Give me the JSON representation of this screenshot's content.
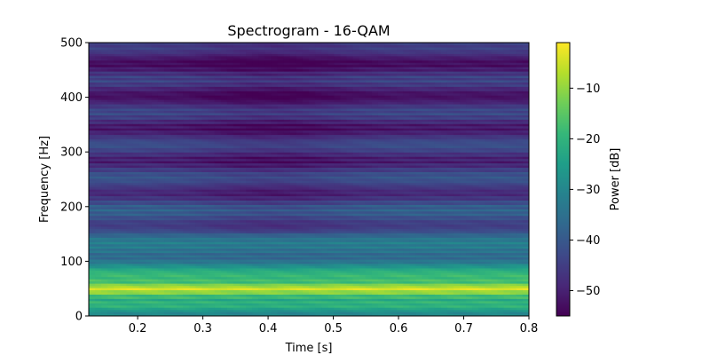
{
  "chart_data": {
    "type": "heatmap",
    "title": "Spectrogram - 16-QAM",
    "xlabel": "Time [s]",
    "ylabel": "Frequency [Hz]",
    "xlim": [
      0.125,
      0.8
    ],
    "ylim": [
      0,
      500
    ],
    "x_ticks": [
      "0.2",
      "0.3",
      "0.4",
      "0.5",
      "0.6",
      "0.7",
      "0.8"
    ],
    "y_ticks": [
      "0",
      "100",
      "200",
      "300",
      "400",
      "500"
    ],
    "colorbar": {
      "label": "Power [dB]",
      "range": [
        -55,
        -1
      ],
      "ticks": [
        "−10",
        "−20",
        "−30",
        "−40",
        "−50"
      ],
      "colormap": "viridis"
    },
    "colormap_stops": [
      "#440154",
      "#482878",
      "#3e4989",
      "#31688e",
      "#26828e",
      "#1f9e89",
      "#35b779",
      "#6ece58",
      "#b5de2b",
      "#fde725"
    ],
    "frequency_profile_db": [
      {
        "f": 0,
        "db": -28
      },
      {
        "f": 8,
        "db": -32
      },
      {
        "f": 15,
        "db": -26
      },
      {
        "f": 22,
        "db": -24
      },
      {
        "f": 30,
        "db": -22
      },
      {
        "f": 38,
        "db": -14
      },
      {
        "f": 42,
        "db": -8
      },
      {
        "f": 47,
        "db": -2
      },
      {
        "f": 50,
        "db": -1
      },
      {
        "f": 55,
        "db": -4
      },
      {
        "f": 60,
        "db": -16
      },
      {
        "f": 70,
        "db": -22
      },
      {
        "f": 85,
        "db": -25
      },
      {
        "f": 100,
        "db": -30
      },
      {
        "f": 130,
        "db": -36
      },
      {
        "f": 160,
        "db": -40
      },
      {
        "f": 200,
        "db": -43
      },
      {
        "f": 250,
        "db": -45
      },
      {
        "f": 300,
        "db": -46
      },
      {
        "f": 400,
        "db": -48
      },
      {
        "f": 500,
        "db": -49
      }
    ]
  }
}
